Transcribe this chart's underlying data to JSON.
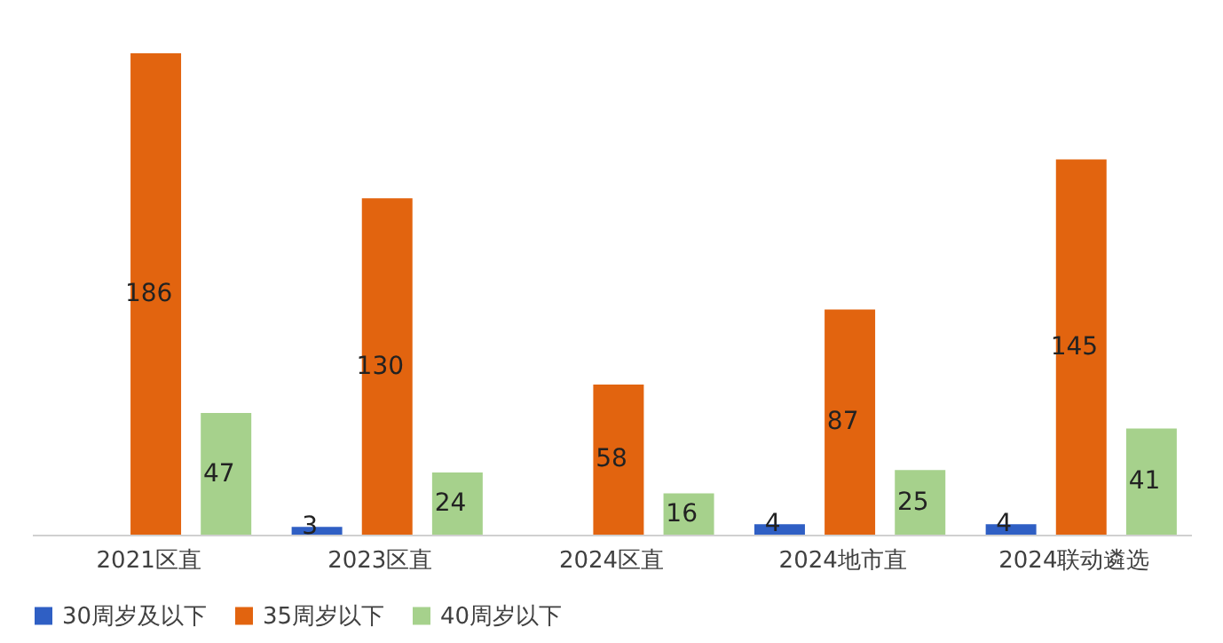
{
  "chart_data": {
    "type": "bar",
    "categories": [
      "2021区直",
      "2023区直",
      "2024区直",
      "2024地市直",
      "2024联动遴选"
    ],
    "series": [
      {
        "name": "30周岁及以下",
        "color": "#2f5fc4",
        "values": [
          null,
          3,
          null,
          4,
          4
        ]
      },
      {
        "name": "35周岁以下",
        "color": "#e2640f",
        "values": [
          186,
          130,
          58,
          87,
          145
        ]
      },
      {
        "name": "40周岁以下",
        "color": "#a6d18c",
        "values": [
          47,
          24,
          16,
          25,
          41
        ]
      }
    ],
    "data_labels": true,
    "legend": "bottom"
  }
}
